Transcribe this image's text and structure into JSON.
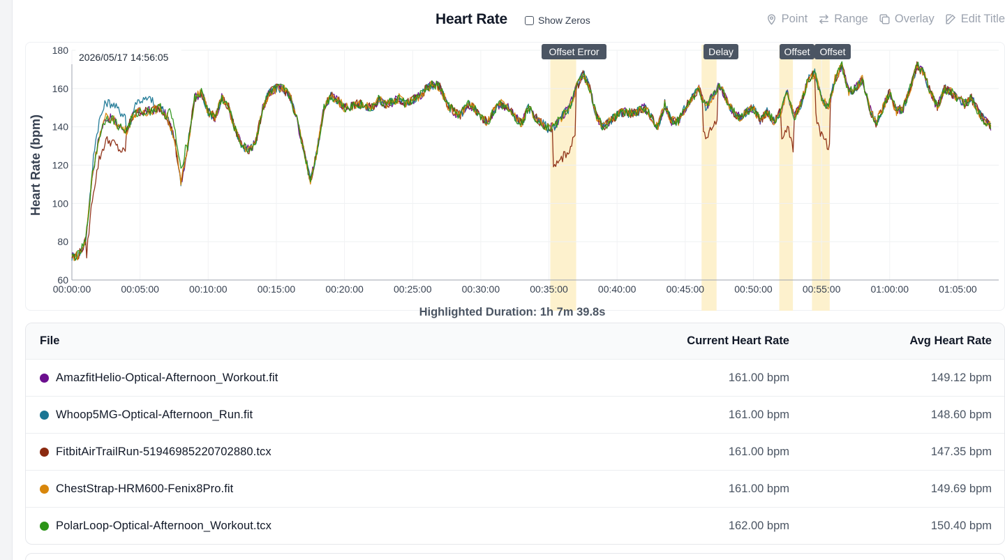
{
  "header": {
    "title": "Heart Rate",
    "show_zeros_label": "Show Zeros",
    "show_zeros_checked": false
  },
  "toolbar": [
    {
      "label": "Point",
      "icon": "map-pin-icon"
    },
    {
      "label": "Range",
      "icon": "arrows-exchange-icon"
    },
    {
      "label": "Overlay",
      "icon": "copy-icon"
    },
    {
      "label": "Edit Title",
      "icon": "edit-icon"
    }
  ],
  "chart": {
    "timestamp": "2026/05/17 14:56:05",
    "highlighted_duration": "Highlighted Duration: 1h 7m 39.8s"
  },
  "chart_data": {
    "type": "line",
    "ylabel": "Heart Rate (bpm)",
    "xlabel": "",
    "ylim": [
      60,
      180
    ],
    "xlim_minutes": [
      0,
      68
    ],
    "y_ticks": [
      60,
      80,
      100,
      120,
      140,
      160,
      180
    ],
    "x_ticks": [
      "00:00:00",
      "00:05:00",
      "00:10:00",
      "00:15:00",
      "00:20:00",
      "00:25:00",
      "00:30:00",
      "00:35:00",
      "00:40:00",
      "00:45:00",
      "00:50:00",
      "00:55:00",
      "01:00:00",
      "01:05:00"
    ],
    "x_tick_minutes": [
      0,
      5,
      10,
      15,
      20,
      25,
      30,
      35,
      40,
      45,
      50,
      55,
      60,
      65
    ],
    "grid": true,
    "highlights": [
      {
        "label": "Offset Error",
        "start_min": 35.1,
        "end_min": 37.0
      },
      {
        "label": "Delay",
        "start_min": 46.2,
        "end_min": 47.3
      },
      {
        "label": "Offset",
        "start_min": 51.9,
        "end_min": 52.9
      },
      {
        "label": "Offset",
        "start_min": 54.3,
        "end_min": 55.6
      }
    ],
    "x_minutes": [
      0,
      0.5,
      1,
      1.5,
      2,
      2.5,
      3,
      3.5,
      4,
      4.5,
      5,
      5.5,
      6,
      6.5,
      7,
      7.5,
      8,
      8.5,
      9,
      9.5,
      10,
      10.5,
      11,
      11.5,
      12,
      12.5,
      13,
      13.5,
      14,
      14.5,
      15,
      15.5,
      16,
      16.5,
      17,
      17.5,
      18,
      18.5,
      19,
      19.5,
      20,
      20.5,
      21,
      21.5,
      22,
      22.5,
      23,
      23.5,
      24,
      24.5,
      25,
      25.5,
      26,
      26.5,
      27,
      27.5,
      28,
      28.5,
      29,
      29.5,
      30,
      30.5,
      31,
      31.5,
      32,
      32.5,
      33,
      33.5,
      34,
      34.5,
      35,
      35.5,
      36,
      36.5,
      37,
      37.5,
      38,
      38.5,
      39,
      39.5,
      40,
      40.5,
      41,
      41.5,
      42,
      42.5,
      43,
      43.5,
      44,
      44.5,
      45,
      45.5,
      46,
      46.5,
      47,
      47.5,
      48,
      48.5,
      49,
      49.5,
      50,
      50.5,
      51,
      51.5,
      52,
      52.5,
      53,
      53.5,
      54,
      54.5,
      55,
      55.5,
      56,
      56.5,
      57,
      57.5,
      58,
      58.5,
      59,
      59.5,
      60,
      60.5,
      61,
      61.5,
      62,
      62.5,
      63,
      63.5,
      64,
      64.5,
      65,
      65.5,
      66,
      66.5,
      67,
      67.5
    ],
    "base_values": [
      72,
      73,
      80,
      115,
      135,
      145,
      144,
      140,
      138,
      146,
      148,
      148,
      149,
      150,
      145,
      135,
      110,
      130,
      155,
      158,
      148,
      145,
      155,
      150,
      138,
      130,
      128,
      132,
      150,
      158,
      160,
      160,
      156,
      144,
      128,
      112,
      128,
      150,
      156,
      154,
      150,
      151,
      152,
      151,
      150,
      154,
      152,
      153,
      155,
      152,
      154,
      156,
      160,
      162,
      161,
      152,
      148,
      146,
      152,
      150,
      145,
      142,
      149,
      152,
      150,
      145,
      142,
      150,
      145,
      142,
      139,
      141,
      146,
      150,
      160,
      168,
      160,
      145,
      140,
      143,
      146,
      148,
      147,
      148,
      150,
      145,
      140,
      152,
      143,
      143,
      150,
      155,
      160,
      150,
      156,
      162,
      155,
      148,
      145,
      148,
      150,
      143,
      148,
      143,
      148,
      158,
      145,
      152,
      165,
      168,
      155,
      150,
      165,
      172,
      158,
      160,
      165,
      150,
      142,
      150,
      158,
      148,
      150,
      160,
      172,
      168,
      158,
      150,
      160,
      158,
      155,
      152,
      155,
      148,
      143,
      140,
      150,
      155,
      157,
      150
    ],
    "series": [
      {
        "name": "AmazfitHelio-Optical-Afternoon_Workout.fit",
        "color": "#6b0f8e",
        "current_hr": "161.00 bpm",
        "avg_hr": "149.12 bpm"
      },
      {
        "name": "Whoop5MG-Optical-Afternoon_Run.fit",
        "color": "#1a7694",
        "current_hr": "161.00 bpm",
        "avg_hr": "148.60 bpm"
      },
      {
        "name": "FitbitAirTrailRun-51946985220702880.tcx",
        "color": "#8b2a10",
        "current_hr": "161.00 bpm",
        "avg_hr": "147.35 bpm"
      },
      {
        "name": "ChestStrap-HRM600-Fenix8Pro.fit",
        "color": "#d8860b",
        "current_hr": "161.00 bpm",
        "avg_hr": "149.69 bpm"
      },
      {
        "name": "PolarLoop-Optical-Afternoon_Workout.tcx",
        "color": "#2c9418",
        "current_hr": "162.00 bpm",
        "avg_hr": "150.40 bpm"
      }
    ]
  },
  "table": {
    "col_file": "File",
    "col_current": "Current Heart Rate",
    "col_avg": "Avg Heart Rate"
  }
}
